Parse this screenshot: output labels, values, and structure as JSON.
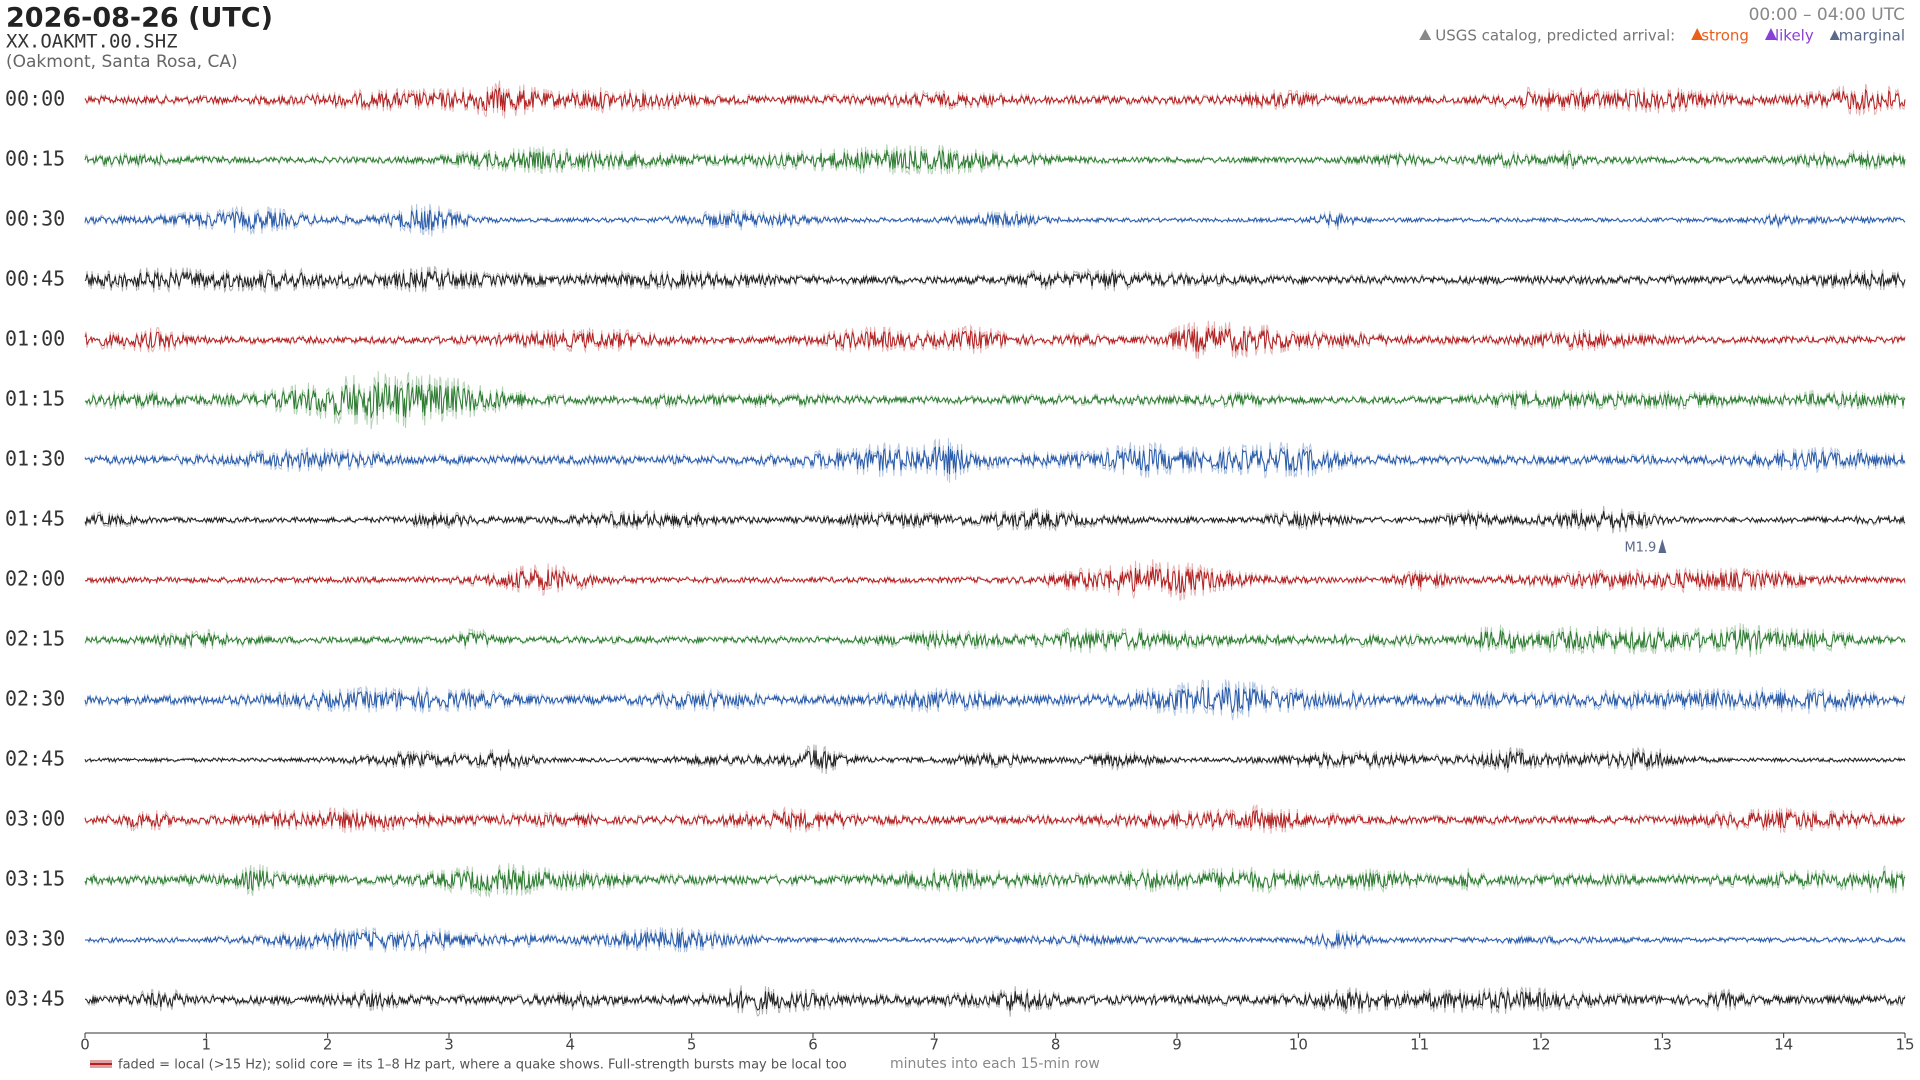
{
  "chart_data": {
    "type": "helicorder",
    "title": "2026-08-26  (UTC)",
    "station": "XX.OAKMT.00.SHZ",
    "location": "(Oakmont, Santa Rosa, CA)",
    "time_range": "00:00 – 04:00 UTC",
    "legend": {
      "label": "USGS catalog, predicted arrival:",
      "entries": [
        {
          "name": "strong",
          "color": "#e8601c"
        },
        {
          "name": "likely",
          "color": "#8a3fd9"
        },
        {
          "name": "marginal",
          "color": "#5a6a8a"
        }
      ]
    },
    "rows": [
      {
        "label": "00:00",
        "color": "#b22222"
      },
      {
        "label": "00:15",
        "color": "#2e7d32"
      },
      {
        "label": "00:30",
        "color": "#2a5caa"
      },
      {
        "label": "00:45",
        "color": "#222222"
      },
      {
        "label": "01:00",
        "color": "#b22222"
      },
      {
        "label": "01:15",
        "color": "#2e7d32"
      },
      {
        "label": "01:30",
        "color": "#2a5caa"
      },
      {
        "label": "01:45",
        "color": "#222222",
        "events": [
          {
            "label": "M1.9",
            "x": 13.0,
            "color": "#5a6a8a"
          }
        ]
      },
      {
        "label": "02:00",
        "color": "#b22222"
      },
      {
        "label": "02:15",
        "color": "#2e7d32"
      },
      {
        "label": "02:30",
        "color": "#2a5caa"
      },
      {
        "label": "02:45",
        "color": "#222222"
      },
      {
        "label": "03:00",
        "color": "#b22222"
      },
      {
        "label": "03:15",
        "color": "#2e7d32"
      },
      {
        "label": "03:30",
        "color": "#2a5caa"
      },
      {
        "label": "03:45",
        "color": "#222222"
      }
    ],
    "xlim": [
      0,
      15
    ],
    "xticks": [
      0,
      1,
      2,
      3,
      4,
      5,
      6,
      7,
      8,
      9,
      10,
      11,
      12,
      13,
      14,
      15
    ],
    "xlabel": "minutes into each 15-min row",
    "note": "faded = local (>15 Hz); solid core = its 1–8 Hz part, where a quake shows. Full-strength bursts may be local too"
  }
}
